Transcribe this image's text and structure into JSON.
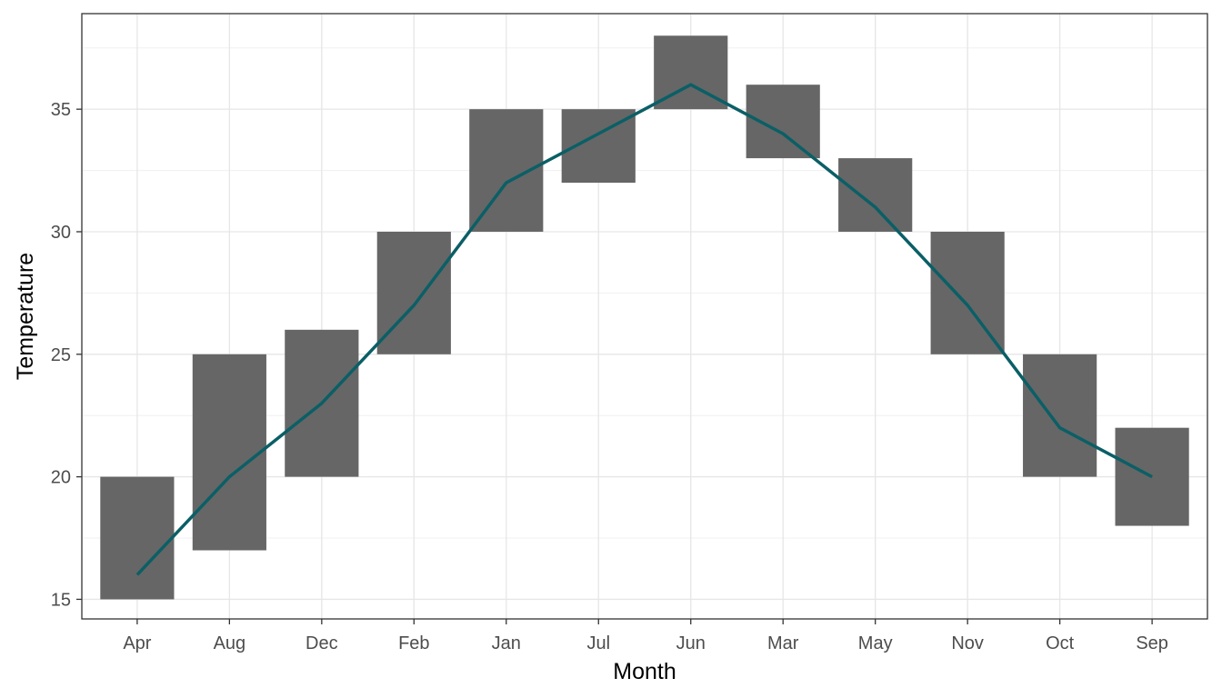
{
  "chart_data": {
    "type": "bar",
    "xlabel": "Month",
    "ylabel": "Temperature",
    "ylim": [
      14.2,
      38.9
    ],
    "yticks": [
      15,
      20,
      25,
      30,
      35
    ],
    "ytick_labels": [
      "15",
      "20",
      "25",
      "30",
      "35"
    ],
    "grid": true,
    "categories": [
      "Apr",
      "Aug",
      "Dec",
      "Feb",
      "Jan",
      "Jul",
      "Jun",
      "Mar",
      "May",
      "Nov",
      "Oct",
      "Sep"
    ],
    "series": [
      {
        "type": "range-bar",
        "low": [
          15,
          17,
          20,
          25,
          30,
          32,
          35,
          33,
          30,
          25,
          20,
          18
        ],
        "high": [
          20,
          25,
          26,
          30,
          35,
          35,
          38,
          36,
          33,
          30,
          25,
          22
        ],
        "color": "#666666"
      },
      {
        "type": "line",
        "values": [
          16,
          20,
          23,
          27,
          32,
          34,
          36,
          34,
          31,
          27,
          22,
          20
        ],
        "color": "#0b5f66"
      }
    ]
  }
}
